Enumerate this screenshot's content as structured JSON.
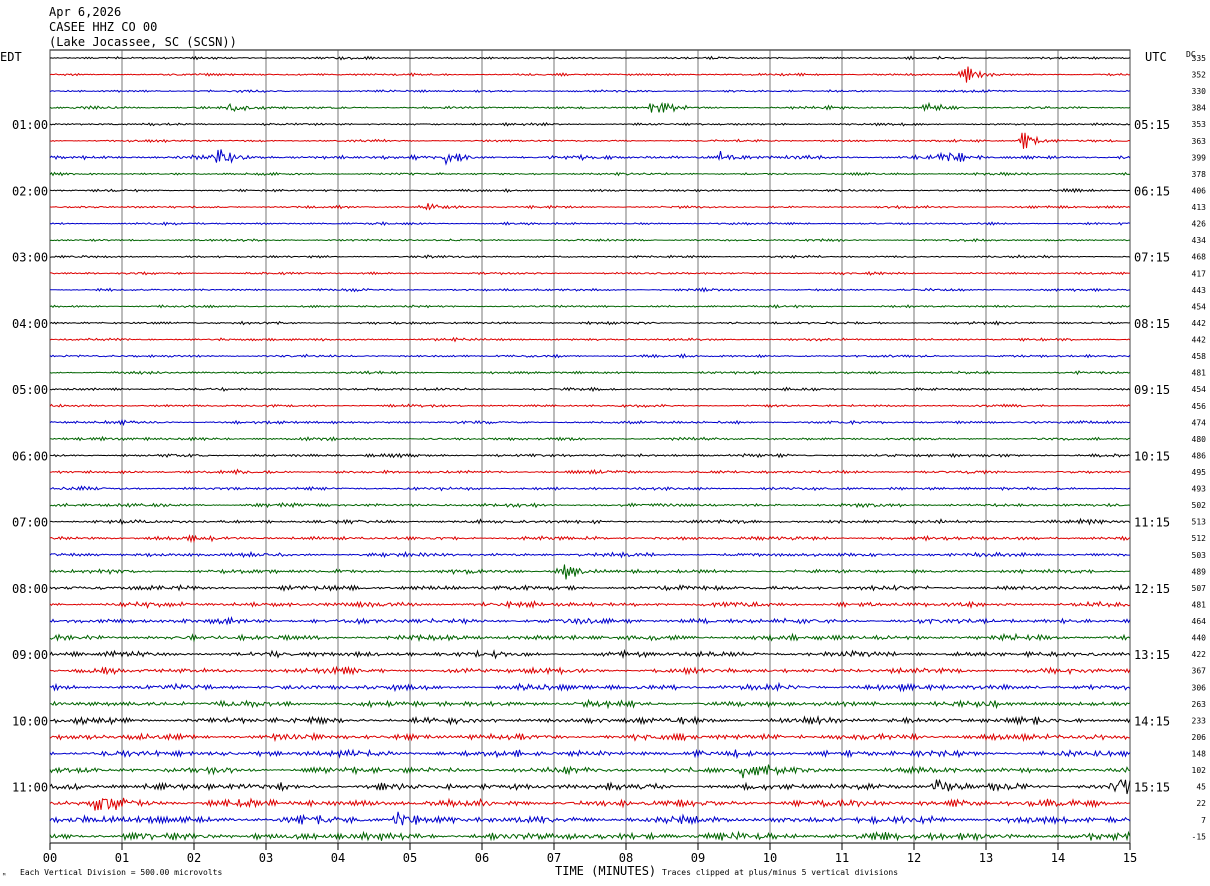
{
  "header": {
    "date": "Apr 6,2026",
    "station": "CASEE HHZ CO 00",
    "location": "(Lake Jocassee, SC (SCSN))"
  },
  "left_axis_label": "EDT",
  "right_axis_label": "UTC",
  "dc_label": "DC",
  "footer": {
    "scale_note": "Each Vertical Division =  500.00 microvolts",
    "clip_note": "Traces clipped at plus/minus 5 vertical divisions",
    "corner_mark": "ᴹ"
  },
  "chart_data": {
    "type": "line",
    "title": "",
    "xlabel": "TIME (MINUTES)",
    "ylabel": "",
    "xlim": [
      0,
      15
    ],
    "x_ticks": [
      "00",
      "01",
      "02",
      "03",
      "04",
      "05",
      "06",
      "07",
      "08",
      "09",
      "10",
      "11",
      "12",
      "13",
      "14",
      "15"
    ],
    "trace_count": 48,
    "trace_colors": [
      "#000000",
      "#dd0000",
      "#0000cc",
      "#006400"
    ],
    "left_hour_labels": [
      "01:00",
      "02:00",
      "03:00",
      "04:00",
      "05:00",
      "06:00",
      "07:00",
      "08:00",
      "09:00",
      "10:00",
      "11:00"
    ],
    "right_hour_labels": [
      "05:15",
      "06:15",
      "07:15",
      "08:15",
      "09:15",
      "10:15",
      "11:15",
      "12:15",
      "13:15",
      "14:15",
      "15:15"
    ],
    "hour_label_first_trace": 4,
    "hour_label_every": 4,
    "dc_offsets": [
      "335",
      "352",
      "330",
      "384",
      "353",
      "363",
      "399",
      "378",
      "406",
      "413",
      "426",
      "434",
      "468",
      "417",
      "443",
      "454",
      "442",
      "442",
      "458",
      "481",
      "454",
      "456",
      "474",
      "480",
      "486",
      "495",
      "493",
      "502",
      "513",
      "512",
      "503",
      "489",
      "507",
      "481",
      "464",
      "440",
      "422",
      "367",
      "306",
      "263",
      "233",
      "206",
      "148",
      "102",
      "45",
      "22",
      "7",
      "-15"
    ],
    "trace_activity": [
      0.8,
      0.8,
      0.8,
      0.9,
      0.8,
      0.8,
      1.3,
      0.8,
      0.8,
      0.8,
      0.8,
      0.8,
      0.8,
      0.8,
      0.8,
      0.8,
      0.9,
      0.9,
      0.9,
      0.9,
      0.9,
      0.9,
      1.0,
      1.0,
      1.1,
      1.1,
      1.1,
      1.2,
      1.3,
      1.3,
      1.4,
      1.4,
      1.6,
      1.7,
      1.8,
      1.8,
      1.9,
      1.9,
      2.0,
      2.0,
      2.1,
      2.1,
      2.2,
      2.2,
      2.4,
      2.4,
      2.5,
      2.5
    ],
    "events": [
      {
        "trace": 1,
        "minute": 12.7,
        "amplitude": 6
      },
      {
        "trace": 3,
        "minute": 2.5,
        "amplitude": 5
      },
      {
        "trace": 3,
        "minute": 8.4,
        "amplitude": 7
      },
      {
        "trace": 3,
        "minute": 12.2,
        "amplitude": 5
      },
      {
        "trace": 5,
        "minute": 13.5,
        "amplitude": 8
      },
      {
        "trace": 6,
        "minute": 2.3,
        "amplitude": 8
      },
      {
        "trace": 6,
        "minute": 5.5,
        "amplitude": 6
      },
      {
        "trace": 6,
        "minute": 9.3,
        "amplitude": 6
      },
      {
        "trace": 6,
        "minute": 12.4,
        "amplitude": 7
      },
      {
        "trace": 9,
        "minute": 5.2,
        "amplitude": 6
      },
      {
        "trace": 31,
        "minute": 7.1,
        "amplitude": 8
      },
      {
        "trace": 43,
        "minute": 9.6,
        "amplitude": 10
      },
      {
        "trace": 44,
        "minute": 12.3,
        "amplitude": 9
      },
      {
        "trace": 44,
        "minute": 14.8,
        "amplitude": 11
      },
      {
        "trace": 45,
        "minute": 0.7,
        "amplitude": 12
      },
      {
        "trace": 46,
        "minute": 4.8,
        "amplitude": 8
      }
    ]
  }
}
